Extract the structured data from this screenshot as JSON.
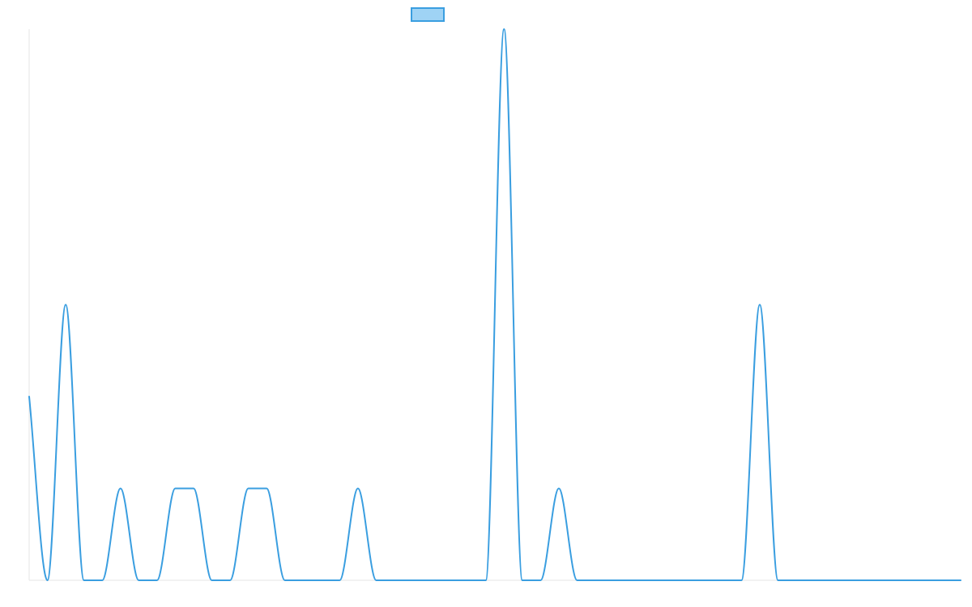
{
  "chart_data": {
    "type": "line",
    "title": "",
    "xlabel": "",
    "ylabel": "",
    "x": [
      0,
      1,
      2,
      3,
      4,
      5,
      6,
      7,
      8,
      9,
      10,
      11,
      12,
      13,
      14,
      15,
      16,
      17,
      18,
      19,
      20,
      21,
      22,
      23,
      24,
      25,
      26,
      27,
      28,
      29,
      30,
      31,
      32,
      33,
      34,
      35,
      36,
      37,
      38,
      39,
      40,
      41,
      42,
      43,
      44,
      45,
      46,
      47,
      48,
      49,
      50,
      51
    ],
    "xlim": [
      0,
      51
    ],
    "ylim": [
      0,
      30
    ],
    "grid": false,
    "legend": "top-center",
    "series": [
      {
        "name": "",
        "color": "#3a9ee0",
        "fill_color": "#9fd3f5",
        "values": [
          10,
          0,
          15,
          0,
          0,
          5,
          0,
          0,
          5,
          5,
          0,
          0,
          5,
          5,
          0,
          0,
          0,
          0,
          5,
          0,
          0,
          0,
          0,
          0,
          0,
          0,
          30,
          0,
          0,
          5,
          0,
          0,
          0,
          0,
          0,
          0,
          0,
          0,
          0,
          0,
          15,
          0,
          0,
          0,
          0,
          0,
          0,
          0,
          0,
          0,
          0,
          0
        ]
      }
    ]
  }
}
